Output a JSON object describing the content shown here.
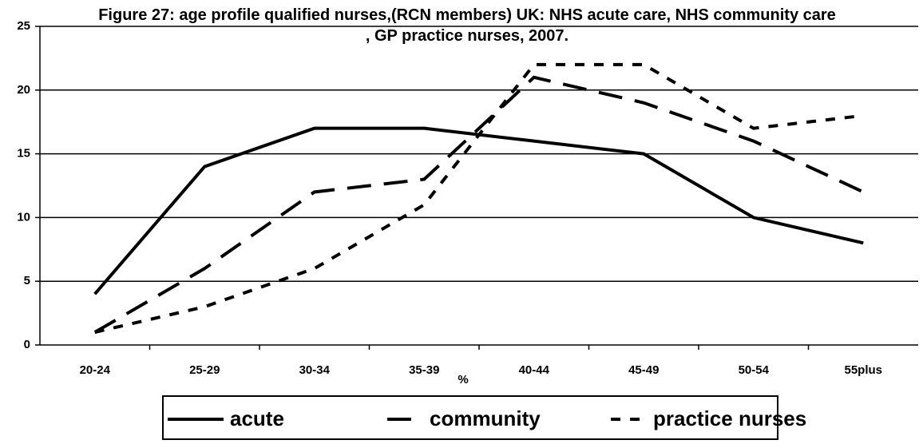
{
  "chart_data": {
    "type": "line",
    "title": "Figure 27: age profile qualified nurses,(RCN members) UK: NHS acute care, NHS community care , GP practice nurses, 2007.",
    "x_label": "%",
    "categories": [
      "20-24",
      "25-29",
      "30-34",
      "35-39",
      "40-44",
      "45-49",
      "50-54",
      "55plus"
    ],
    "series": [
      {
        "name": "acute",
        "color": "#000000",
        "dash": "solid",
        "values": [
          4,
          14,
          17,
          17,
          16,
          15,
          10,
          8
        ]
      },
      {
        "name": "community",
        "color": "#000000",
        "dash": "long",
        "values": [
          1,
          6,
          12,
          13,
          21,
          19,
          16,
          12
        ]
      },
      {
        "name": "practice nurses",
        "color": "#000000",
        "dash": "short",
        "values": [
          1,
          3,
          6,
          11,
          22,
          22,
          17,
          18
        ]
      }
    ],
    "ylim": [
      0,
      25
    ],
    "yticks": [
      0,
      5,
      10,
      15,
      20,
      25
    ],
    "grid": true,
    "legend": "bottom"
  }
}
